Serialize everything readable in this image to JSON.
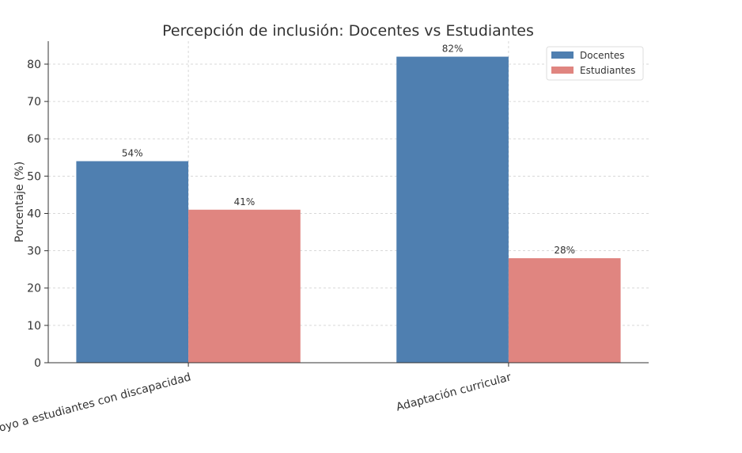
{
  "chart_data": {
    "type": "bar",
    "title": "Percepción de inclusión: Docentes vs Estudiantes",
    "xlabel": "",
    "ylabel": "Porcentaje (%)",
    "categories": [
      "Apoyo a estudiantes con discapacidad",
      "Adaptación curricular"
    ],
    "series": [
      {
        "name": "Docentes",
        "values": [
          54,
          82
        ],
        "color": "#4f7fb0",
        "labels": [
          "54%",
          "82%"
        ]
      },
      {
        "name": "Estudiantes",
        "values": [
          41,
          28
        ],
        "color": "#e08580",
        "labels": [
          "41%",
          "28%"
        ]
      }
    ],
    "ylim": [
      0,
      86
    ],
    "yticks": [
      0,
      10,
      20,
      30,
      40,
      50,
      60,
      70,
      80
    ],
    "grid": true,
    "legend": "top-right"
  }
}
